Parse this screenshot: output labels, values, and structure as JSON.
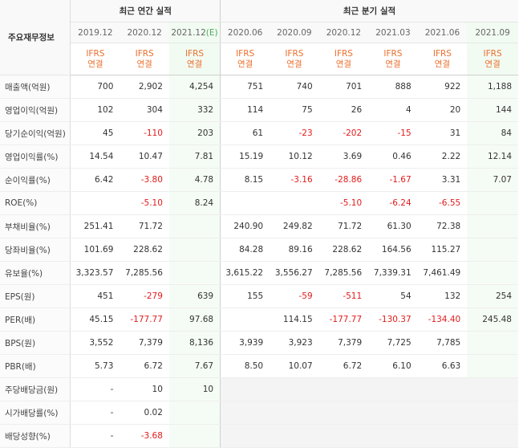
{
  "header": {
    "row_label": "주요재무정보",
    "annual_group": "최근 연간 실적",
    "quarter_group": "최근 분기 실적",
    "annual_periods": [
      "2019.12",
      "2020.12",
      "2021.12"
    ],
    "quarter_periods": [
      "2020.06",
      "2020.09",
      "2020.12",
      "2021.03",
      "2021.06",
      "2021.09"
    ],
    "estimate_marker": "(E)",
    "ifrs_line1": "IFRS",
    "ifrs_line2": "연결"
  },
  "rows": [
    {
      "label": "매출액(억원)",
      "values": [
        "700",
        "2,902",
        "4,254",
        "751",
        "740",
        "701",
        "888",
        "922",
        "1,188"
      ]
    },
    {
      "label": "영업이익(억원)",
      "values": [
        "102",
        "304",
        "332",
        "114",
        "75",
        "26",
        "4",
        "20",
        "144"
      ]
    },
    {
      "label": "당기순이익(억원)",
      "values": [
        "45",
        "-110",
        "203",
        "61",
        "-23",
        "-202",
        "-15",
        "31",
        "84"
      ]
    },
    {
      "label": "영업이익률(%)",
      "values": [
        "14.54",
        "10.47",
        "7.81",
        "15.19",
        "10.12",
        "3.69",
        "0.46",
        "2.22",
        "12.14"
      ]
    },
    {
      "label": "순이익률(%)",
      "values": [
        "6.42",
        "-3.80",
        "4.78",
        "8.15",
        "-3.16",
        "-28.86",
        "-1.67",
        "3.31",
        "7.07"
      ]
    },
    {
      "label": "ROE(%)",
      "values": [
        "",
        "-5.10",
        "8.24",
        "",
        "",
        "-5.10",
        "-6.24",
        "-6.55",
        ""
      ]
    },
    {
      "label": "부채비율(%)",
      "values": [
        "251.41",
        "71.72",
        "",
        "240.90",
        "249.82",
        "71.72",
        "61.30",
        "72.38",
        ""
      ]
    },
    {
      "label": "당좌비율(%)",
      "values": [
        "101.69",
        "228.62",
        "",
        "84.28",
        "89.16",
        "228.62",
        "164.56",
        "115.27",
        ""
      ]
    },
    {
      "label": "유보율(%)",
      "values": [
        "3,323.57",
        "7,285.56",
        "",
        "3,615.22",
        "3,556.27",
        "7,285.56",
        "7,339.31",
        "7,461.49",
        ""
      ]
    },
    {
      "label": "EPS(원)",
      "values": [
        "451",
        "-279",
        "639",
        "155",
        "-59",
        "-511",
        "54",
        "132",
        "254"
      ]
    },
    {
      "label": "PER(배)",
      "values": [
        "45.15",
        "-177.77",
        "97.68",
        "",
        "114.15",
        "-177.77",
        "-130.37",
        "-134.40",
        "245.48"
      ]
    },
    {
      "label": "BPS(원)",
      "values": [
        "3,552",
        "7,379",
        "8,136",
        "3,939",
        "3,923",
        "7,379",
        "7,725",
        "7,785",
        ""
      ]
    },
    {
      "label": "PBR(배)",
      "values": [
        "5.73",
        "6.72",
        "7.67",
        "8.50",
        "10.07",
        "6.72",
        "6.10",
        "6.63",
        ""
      ]
    },
    {
      "label": "주당배당금(원)",
      "values": [
        "-",
        "10",
        "10",
        "",
        "",
        "",
        "",
        "",
        ""
      ]
    },
    {
      "label": "시가배당률(%)",
      "values": [
        "-",
        "0.02",
        "",
        "",
        "",
        "",
        "",
        "",
        ""
      ]
    },
    {
      "label": "배당성향(%)",
      "values": [
        "-",
        "-3.68",
        "",
        "",
        "",
        "",
        "",
        "",
        ""
      ]
    }
  ],
  "colors": {
    "negative": "#e21b1b",
    "ifrs": "#ec6f2c",
    "estimate": "#4caa55"
  }
}
